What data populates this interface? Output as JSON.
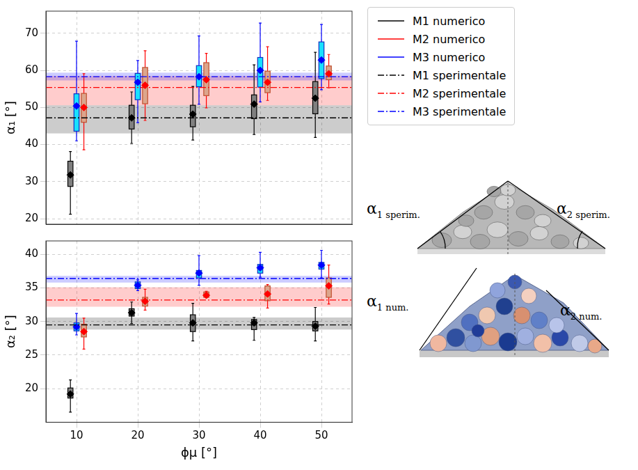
{
  "chart_data": [
    {
      "type": "boxplot",
      "ylabel": "α₁ [°]",
      "x": [
        10,
        20,
        30,
        40,
        50
      ],
      "xlim": [
        5,
        55
      ],
      "xticks": [
        10,
        20,
        30,
        40,
        50
      ],
      "ylim": [
        18.5,
        76
      ],
      "yticks": [
        20,
        30,
        40,
        50,
        60,
        70
      ],
      "grid": true,
      "legend": "right",
      "tick_labels": "y",
      "series": [
        {
          "name": "M1 numerico",
          "type": "box",
          "color": "#000000",
          "line_style": "solid",
          "marker": "diamond",
          "min": [
            21.2,
            40.3,
            41.2,
            42.7,
            41.9
          ],
          "q1": [
            28.7,
            44.2,
            44.8,
            47.0,
            48.3
          ],
          "q3": [
            35.5,
            50.6,
            50.6,
            53.4,
            57.0
          ],
          "max": [
            38.1,
            54.2,
            55.7,
            61.5,
            64.9
          ],
          "mean": [
            31.8,
            47.2,
            48.2,
            50.9,
            52.5
          ]
        },
        {
          "name": "M2 numerico",
          "type": "box",
          "color": "#ff0000",
          "line_style": "solid",
          "marker": "diamond",
          "min": [
            38.6,
            46.5,
            49.9,
            51.9,
            55.3
          ],
          "q1": [
            46.0,
            51.0,
            53.2,
            54.0,
            57.5
          ],
          "q3": [
            53.8,
            60.8,
            62.1,
            59.8,
            61.2
          ],
          "max": [
            59.1,
            65.3,
            64.6,
            66.4,
            64.3
          ],
          "mean": [
            50.0,
            56.0,
            57.5,
            56.8,
            59.1
          ]
        },
        {
          "name": "M3 numerico",
          "type": "box",
          "color": "#0000ff",
          "line_style": "solid",
          "marker": "diamond",
          "min": [
            41.0,
            45.9,
            50.9,
            51.5,
            54.8
          ],
          "q1": [
            43.6,
            52.1,
            55.6,
            55.5,
            57.8
          ],
          "q3": [
            53.7,
            59.2,
            61.3,
            63.5,
            67.7
          ],
          "max": [
            67.9,
            62.7,
            69.3,
            72.8,
            72.4
          ],
          "mean": [
            50.4,
            56.8,
            58.3,
            60.0,
            62.8
          ]
        },
        {
          "name": "M1 sperimentale",
          "type": "line",
          "color": "#000000",
          "line_style": "dashdot",
          "value": 47.2,
          "band": [
            43.0,
            50.6
          ]
        },
        {
          "name": "M2 sperimentale",
          "type": "line",
          "color": "#ff0000",
          "line_style": "dashdot",
          "value": 55.4,
          "band": [
            50.6,
            58.5
          ]
        },
        {
          "name": "M3 sperimentale",
          "type": "line",
          "color": "#0000ff",
          "line_style": "dashdot",
          "value": 58.3,
          "band": [
            57.3,
            59.4
          ]
        }
      ]
    },
    {
      "type": "boxplot",
      "xlabel": "ϕμ [°]",
      "ylabel": "α₂ [°]",
      "x": [
        10,
        20,
        30,
        40,
        50
      ],
      "xlim": [
        5,
        55
      ],
      "xticks": [
        10,
        20,
        30,
        40,
        50
      ],
      "ylim": [
        15,
        42
      ],
      "yticks": [
        20,
        25,
        30,
        35,
        40
      ],
      "grid": true,
      "series": [
        {
          "name": "M1 numerico",
          "type": "box",
          "color": "#000000",
          "line_style": "solid",
          "marker": "diamond",
          "min": [
            16.5,
            29.7,
            27.1,
            27.2,
            27.1
          ],
          "q1": [
            18.6,
            30.8,
            28.5,
            28.8,
            28.6
          ],
          "q3": [
            20.1,
            31.9,
            31.0,
            30.3,
            30.0
          ],
          "max": [
            21.3,
            32.9,
            32.7,
            30.6,
            32.1
          ],
          "mean": [
            19.2,
            31.3,
            29.8,
            29.8,
            29.3
          ]
        },
        {
          "name": "M2 numerico",
          "type": "box",
          "color": "#ff0000",
          "line_style": "solid",
          "marker": "diamond",
          "min": [
            25.9,
            31.7,
            33.6,
            32.0,
            32.6
          ],
          "q1": [
            27.7,
            32.3,
            33.6,
            33.1,
            33.6
          ],
          "q3": [
            29.6,
            33.6,
            34.4,
            35.3,
            36.5
          ],
          "max": [
            30.5,
            34.8,
            34.5,
            35.5,
            38.4
          ],
          "mean": [
            28.5,
            33.0,
            33.9,
            34.1,
            35.3
          ]
        },
        {
          "name": "M3 numerico",
          "type": "box",
          "color": "#0000ff",
          "line_style": "solid",
          "marker": "diamond",
          "min": [
            28.0,
            34.6,
            35.4,
            36.6,
            36.5
          ],
          "q1": [
            28.6,
            34.9,
            36.5,
            37.2,
            37.8
          ],
          "q3": [
            29.8,
            35.9,
            37.6,
            38.5,
            38.8
          ],
          "max": [
            31.2,
            36.2,
            39.8,
            40.3,
            40.6
          ],
          "mean": [
            29.2,
            35.4,
            37.2,
            38.0,
            38.4
          ]
        },
        {
          "name": "M1 sperimentale",
          "type": "line",
          "color": "#000000",
          "line_style": "dashdot",
          "value": 29.5,
          "band": [
            28.8,
            30.6
          ]
        },
        {
          "name": "M2 sperimentale",
          "type": "line",
          "color": "#ff0000",
          "line_style": "dashdot",
          "value": 33.2,
          "band": [
            32.2,
            35.1
          ]
        },
        {
          "name": "M3 sperimentale",
          "type": "line",
          "color": "#0000ff",
          "line_style": "dashdot",
          "value": 36.4,
          "band": [
            35.8,
            36.8
          ]
        }
      ]
    }
  ],
  "illustration": {
    "labels": [
      {
        "base": "α",
        "subscript": "1 sperim."
      },
      {
        "base": "α",
        "subscript": "2 sperim."
      },
      {
        "base": "α",
        "subscript": "1 num."
      },
      {
        "base": "α",
        "subscript": "2 num."
      }
    ]
  }
}
